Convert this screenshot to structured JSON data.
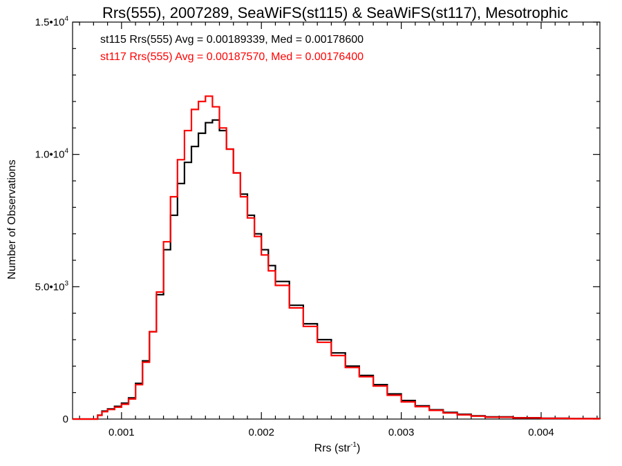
{
  "chart_data": {
    "type": "line",
    "title": "Rrs(555), 2007289, SeaWiFS(st115) & SeaWiFS(st117), Mesotrophic",
    "xlabel": "Rrs (str",
    "xlabel_sup": "-1",
    "xlabel_close": ")",
    "ylabel": "Number of Observations",
    "xlim": [
      0.00065,
      0.00442
    ],
    "ylim": [
      0,
      15000
    ],
    "x_ticks": [
      {
        "value": 0.001,
        "label": "0.001"
      },
      {
        "value": 0.002,
        "label": "0.002"
      },
      {
        "value": 0.003,
        "label": "0.003"
      },
      {
        "value": 0.004,
        "label": "0.004"
      }
    ],
    "y_ticks": [
      {
        "value": 0,
        "label": "0",
        "sup": ""
      },
      {
        "value": 5000,
        "label": "5.0•10",
        "sup": "3"
      },
      {
        "value": 10000,
        "label": "1.0•10",
        "sup": "4"
      },
      {
        "value": 15000,
        "label": "1.5•10",
        "sup": "4"
      }
    ],
    "annotations": [
      {
        "text": "st115 Rrs(555) Avg = 0.00189339, Med = 0.00178600",
        "color": "#000000"
      },
      {
        "text": "st117 Rrs(555) Avg = 0.00187570, Med = 0.00176400",
        "color": "#ff0000"
      }
    ],
    "series": [
      {
        "color": "#000000",
        "x": [
          0.00065,
          0.0008,
          0.00083,
          0.00086,
          0.0009,
          0.00095,
          0.001,
          0.00105,
          0.0011,
          0.00115,
          0.0012,
          0.00125,
          0.0013,
          0.00135,
          0.0014,
          0.00145,
          0.0015,
          0.00155,
          0.0016,
          0.00165,
          0.0017,
          0.00175,
          0.0018,
          0.00185,
          0.0019,
          0.00195,
          0.002,
          0.00205,
          0.0021,
          0.0022,
          0.0023,
          0.0024,
          0.0025,
          0.0026,
          0.0027,
          0.0028,
          0.0029,
          0.003,
          0.0031,
          0.0032,
          0.0033,
          0.0034,
          0.0035,
          0.0036,
          0.0038,
          0.004,
          0.0042,
          0.00442
        ],
        "y": [
          0,
          0,
          150,
          300,
          380,
          480,
          600,
          800,
          1350,
          2200,
          3300,
          4700,
          6400,
          7700,
          8900,
          9700,
          10300,
          10800,
          11200,
          11300,
          10900,
          10200,
          9300,
          8500,
          7700,
          7000,
          6400,
          5800,
          5200,
          4300,
          3600,
          3000,
          2500,
          2000,
          1650,
          1300,
          950,
          700,
          500,
          350,
          250,
          180,
          120,
          80,
          50,
          30,
          15,
          5
        ]
      },
      {
        "color": "#ff0000",
        "x": [
          0.00065,
          0.0008,
          0.00083,
          0.00086,
          0.0009,
          0.00095,
          0.001,
          0.00105,
          0.0011,
          0.00115,
          0.0012,
          0.00125,
          0.0013,
          0.00135,
          0.0014,
          0.00145,
          0.0015,
          0.00155,
          0.0016,
          0.00165,
          0.0017,
          0.00175,
          0.0018,
          0.00185,
          0.0019,
          0.00195,
          0.002,
          0.00205,
          0.0021,
          0.0022,
          0.0023,
          0.0024,
          0.0025,
          0.0026,
          0.0027,
          0.0028,
          0.0029,
          0.003,
          0.0031,
          0.0032,
          0.0033,
          0.0034,
          0.0035,
          0.0036,
          0.0038,
          0.004,
          0.0042,
          0.00442
        ],
        "y": [
          0,
          0,
          140,
          280,
          360,
          450,
          560,
          760,
          1300,
          2150,
          3300,
          4800,
          6700,
          8400,
          9800,
          10900,
          11700,
          12000,
          12200,
          11800,
          11000,
          10200,
          9300,
          8400,
          7600,
          6900,
          6200,
          5600,
          5050,
          4200,
          3500,
          2900,
          2400,
          1950,
          1600,
          1250,
          900,
          650,
          470,
          330,
          230,
          160,
          110,
          70,
          45,
          25,
          12,
          4
        ]
      }
    ]
  }
}
